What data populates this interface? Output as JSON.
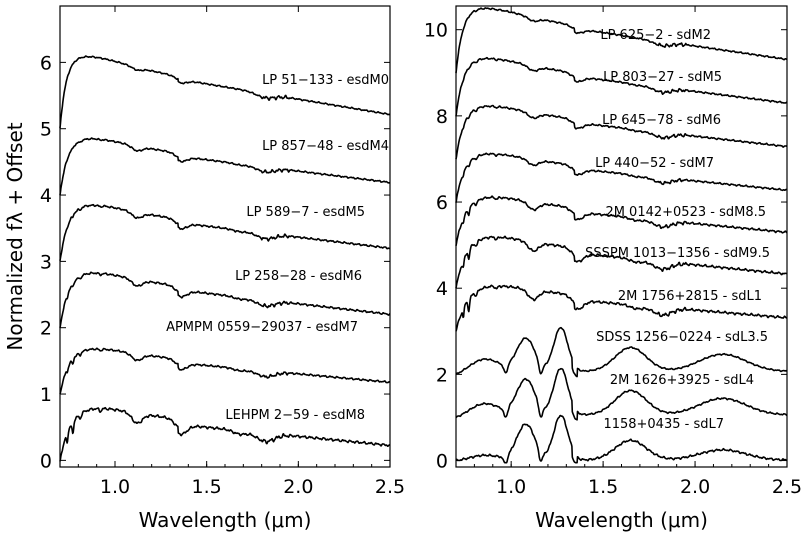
{
  "chart_data": [
    {
      "type": "line",
      "xlabel": "Wavelength (μm)",
      "ylabel": "Normalized fλ + Offset",
      "xlim": [
        0.7,
        2.5
      ],
      "ylim": [
        -0.1,
        6.85
      ],
      "xticks": [
        "1.0",
        "1.5",
        "2.0",
        "2.5"
      ],
      "yticks": [
        "0",
        "1",
        "2",
        "3",
        "4",
        "5",
        "6"
      ],
      "series": [
        {
          "name": "LP 51−133 - esdM0",
          "offset": 5,
          "kind": "esdM0"
        },
        {
          "name": "LP 857−48 - esdM4",
          "offset": 4,
          "kind": "esdM4"
        },
        {
          "name": "LP 589−7 - esdM5",
          "offset": 3,
          "kind": "esdM5"
        },
        {
          "name": "LP 258−28 - esdM6",
          "offset": 2,
          "kind": "esdM6"
        },
        {
          "name": "APMPM 0559−29037 - esdM7",
          "offset": 1,
          "kind": "esdM7"
        },
        {
          "name": "LEHPM 2−59 - esdM8",
          "offset": 0,
          "kind": "esdM8"
        }
      ]
    },
    {
      "type": "line",
      "xlabel": "Wavelength (μm)",
      "ylabel": "",
      "xlim": [
        0.7,
        2.5
      ],
      "ylim": [
        -0.15,
        10.55
      ],
      "xticks": [
        "1.0",
        "1.5",
        "2.0",
        "2.5"
      ],
      "yticks": [
        "0",
        "2",
        "4",
        "6",
        "8",
        "10"
      ],
      "series": [
        {
          "name": "LP 625−2 - sdM2",
          "offset": 9,
          "kind": "sdM2"
        },
        {
          "name": "LP 803−27 - sdM5",
          "offset": 8,
          "kind": "sdM5"
        },
        {
          "name": "LP 645−78 - sdM6",
          "offset": 7,
          "kind": "sdM6"
        },
        {
          "name": "LP 440−52 - sdM7",
          "offset": 6,
          "kind": "sdM7"
        },
        {
          "name": "2M 0142+0523 - sdM8.5",
          "offset": 5,
          "kind": "sdM8.5"
        },
        {
          "name": "SSSPM 1013−1356 - sdM9.5",
          "offset": 4,
          "kind": "sdM9.5"
        },
        {
          "name": "2M 1756+2815 - sdL1",
          "offset": 3,
          "kind": "sdL1"
        },
        {
          "name": "SDSS 1256−0224 - sdL3.5",
          "offset": 2,
          "kind": "sdL3.5"
        },
        {
          "name": "2M 1626+3925 - sdL4",
          "offset": 1,
          "kind": "sdL4"
        },
        {
          "name": "1158+0435 - sdL7",
          "offset": 0,
          "kind": "sdL7"
        }
      ]
    }
  ]
}
